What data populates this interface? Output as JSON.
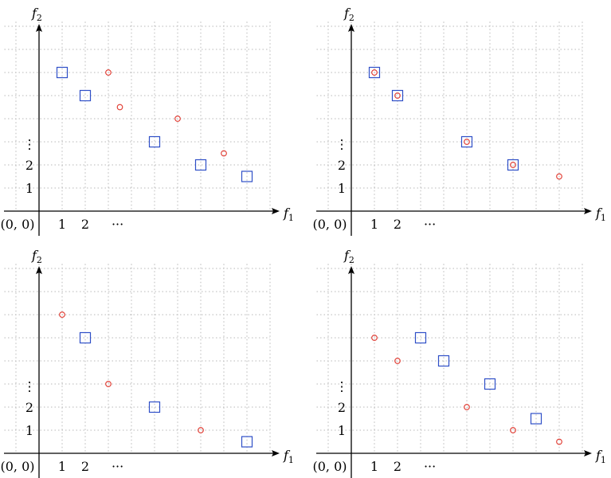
{
  "labels": {
    "x_axis": "f",
    "x_axis_sub": "1",
    "y_axis": "f",
    "y_axis_sub": "2",
    "origin": "(0, 0)",
    "x_tick_1": "1",
    "x_tick_2": "2",
    "x_dots": "···",
    "y_tick_1": "1",
    "y_tick_2": "2",
    "y_dots": "⋮"
  },
  "colors": {
    "square": "#2f4fc7",
    "circle": "#e0352b"
  },
  "panels": [
    {
      "squares": [
        [
          1,
          6
        ],
        [
          2,
          5
        ],
        [
          5,
          3
        ],
        [
          7,
          2
        ],
        [
          9,
          1.5
        ]
      ],
      "circles": [
        [
          3,
          6
        ],
        [
          3.5,
          4.5
        ],
        [
          6,
          4
        ],
        [
          8,
          2.5
        ]
      ]
    },
    {
      "squares": [
        [
          1,
          6
        ],
        [
          2,
          5
        ],
        [
          5,
          3
        ],
        [
          7,
          2
        ]
      ],
      "circles": [
        [
          1,
          6
        ],
        [
          2,
          5
        ],
        [
          5,
          3
        ],
        [
          7,
          2
        ],
        [
          9,
          1.5
        ]
      ]
    },
    {
      "squares": [
        [
          2,
          5
        ],
        [
          5,
          2
        ],
        [
          9,
          0.5
        ]
      ],
      "circles": [
        [
          1,
          6
        ],
        [
          3,
          3
        ],
        [
          7,
          1
        ]
      ]
    },
    {
      "squares": [
        [
          3,
          5
        ],
        [
          4,
          4
        ],
        [
          6,
          3
        ],
        [
          8,
          1.5
        ]
      ],
      "circles": [
        [
          1,
          5
        ],
        [
          2,
          4
        ],
        [
          5,
          2
        ],
        [
          7,
          1
        ],
        [
          9,
          0.5
        ]
      ]
    }
  ]
}
